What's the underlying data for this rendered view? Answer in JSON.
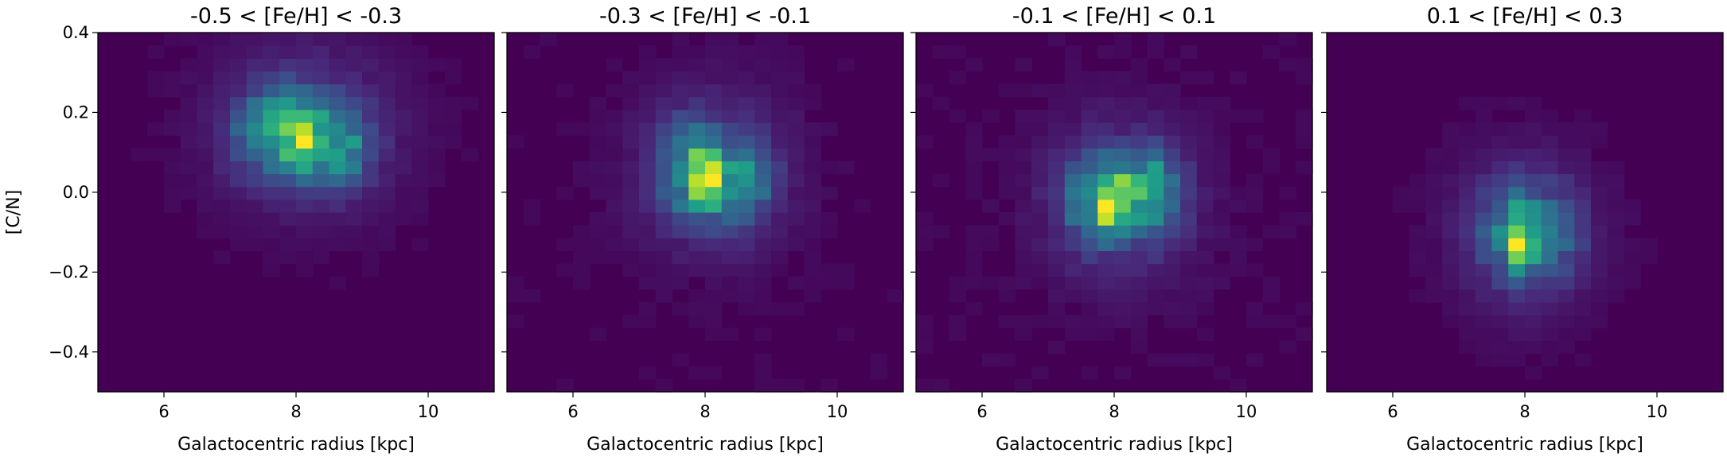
{
  "figure": {
    "colormap": "viridis",
    "background_color": "#440154"
  },
  "chart_data": [
    {
      "type": "heatmap",
      "title": "-0.5 < [Fe/H] < -0.3",
      "xlabel": "Galactocentric radius [kpc]",
      "ylabel": "[C/N]",
      "xlim": [
        5,
        11
      ],
      "ylim": [
        -0.5,
        0.4
      ],
      "xticks": [
        6,
        8,
        10
      ],
      "yticks": [
        0.4,
        0.2,
        0.0,
        -0.2,
        -0.4
      ],
      "xtick_labels": [
        "6",
        "8",
        "10"
      ],
      "ytick_labels": [
        "0.4",
        "0.2",
        "0.0",
        "−0.2",
        "−0.4"
      ],
      "grid": false,
      "bins": {
        "nx": 24,
        "ny": 28
      },
      "peaks": [
        {
          "x": 7.85,
          "y": 0.15,
          "sx": 0.48,
          "sy": 0.075,
          "a": 0.85
        },
        {
          "x": 8.15,
          "y": 0.11,
          "sx": 0.12,
          "sy": 0.04,
          "a": 0.55
        },
        {
          "x": 8.7,
          "y": 0.11,
          "sx": 0.32,
          "sy": 0.065,
          "a": 0.55
        },
        {
          "x": 8.2,
          "y": 0.16,
          "sx": 1.05,
          "sy": 0.16,
          "a": 0.22
        }
      ]
    },
    {
      "type": "heatmap",
      "title": "-0.3 < [Fe/H] < -0.1",
      "xlabel": "Galactocentric radius [kpc]",
      "ylabel": "",
      "xlim": [
        5,
        11
      ],
      "ylim": [
        -0.5,
        0.4
      ],
      "xticks": [
        6,
        8,
        10
      ],
      "yticks": [
        0.4,
        0.2,
        0.0,
        -0.2,
        -0.4
      ],
      "xtick_labels": [
        "6",
        "8",
        "10"
      ],
      "ytick_labels": [],
      "grid": false,
      "bins": {
        "nx": 24,
        "ny": 28
      },
      "peaks": [
        {
          "x": 8.0,
          "y": 0.03,
          "sx": 0.14,
          "sy": 0.05,
          "a": 0.75
        },
        {
          "x": 7.75,
          "y": 0.06,
          "sx": 0.3,
          "sy": 0.08,
          "a": 0.4
        },
        {
          "x": 8.55,
          "y": 0.03,
          "sx": 0.32,
          "sy": 0.07,
          "a": 0.42
        },
        {
          "x": 8.1,
          "y": 0.05,
          "sx": 0.8,
          "sy": 0.14,
          "a": 0.2
        }
      ]
    },
    {
      "type": "heatmap",
      "title": "-0.1 < [Fe/H] < 0.1",
      "xlabel": "Galactocentric radius [kpc]",
      "ylabel": "",
      "xlim": [
        5,
        11
      ],
      "ylim": [
        -0.5,
        0.4
      ],
      "xticks": [
        6,
        8,
        10
      ],
      "yticks": [
        0.4,
        0.2,
        0.0,
        -0.2,
        -0.4
      ],
      "xtick_labels": [
        "6",
        "8",
        "10"
      ],
      "ytick_labels": [],
      "grid": false,
      "bins": {
        "nx": 24,
        "ny": 28
      },
      "peaks": [
        {
          "x": 8.0,
          "y": -0.02,
          "sx": 0.12,
          "sy": 0.05,
          "a": 0.85
        },
        {
          "x": 7.7,
          "y": -0.02,
          "sx": 0.3,
          "sy": 0.07,
          "a": 0.35
        },
        {
          "x": 8.55,
          "y": 0.0,
          "sx": 0.28,
          "sy": 0.07,
          "a": 0.45
        },
        {
          "x": 8.1,
          "y": -0.02,
          "sx": 0.8,
          "sy": 0.14,
          "a": 0.18
        }
      ]
    },
    {
      "type": "heatmap",
      "title": "0.1 < [Fe/H] < 0.3",
      "xlabel": "Galactocentric radius [kpc]",
      "ylabel": "",
      "xlim": [
        5,
        11
      ],
      "ylim": [
        -0.5,
        0.4
      ],
      "xticks": [
        6,
        8,
        10
      ],
      "yticks": [
        0.4,
        0.2,
        0.0,
        -0.2,
        -0.4
      ],
      "xtick_labels": [
        "6",
        "8",
        "10"
      ],
      "ytick_labels": [],
      "grid": false,
      "bins": {
        "nx": 24,
        "ny": 28
      },
      "peaks": [
        {
          "x": 7.95,
          "y": -0.12,
          "sx": 0.13,
          "sy": 0.07,
          "a": 0.85
        },
        {
          "x": 7.7,
          "y": -0.1,
          "sx": 0.32,
          "sy": 0.08,
          "a": 0.4
        },
        {
          "x": 8.4,
          "y": -0.1,
          "sx": 0.32,
          "sy": 0.08,
          "a": 0.38
        },
        {
          "x": 8.0,
          "y": -0.1,
          "sx": 0.8,
          "sy": 0.15,
          "a": 0.2
        }
      ]
    }
  ]
}
